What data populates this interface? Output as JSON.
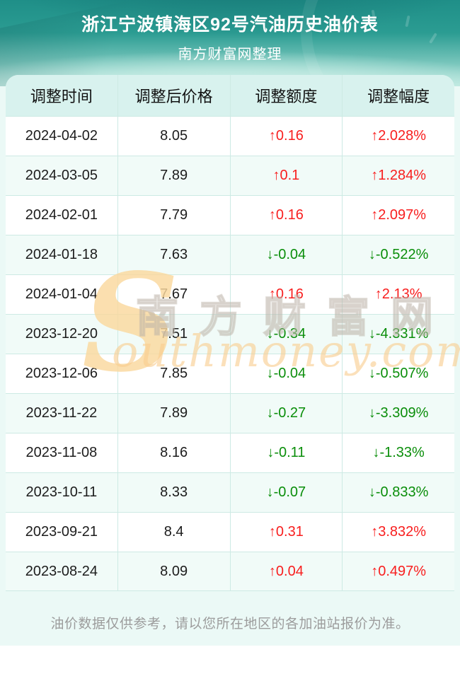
{
  "header": {
    "title": "浙江宁波镇海区92号汽油历史油价表",
    "subtitle": "南方财富网整理"
  },
  "table": {
    "columns": [
      "调整时间",
      "调整后价格",
      "调整额度",
      "调整幅度"
    ],
    "rows": [
      {
        "date": "2024-04-02",
        "price": "8.05",
        "change": "↑0.16",
        "change_pct": "↑2.028%",
        "direction": "up"
      },
      {
        "date": "2024-03-05",
        "price": "7.89",
        "change": "↑0.1",
        "change_pct": "↑1.284%",
        "direction": "up"
      },
      {
        "date": "2024-02-01",
        "price": "7.79",
        "change": "↑0.16",
        "change_pct": "↑2.097%",
        "direction": "up"
      },
      {
        "date": "2024-01-18",
        "price": "7.63",
        "change": "↓-0.04",
        "change_pct": "↓-0.522%",
        "direction": "down"
      },
      {
        "date": "2024-01-04",
        "price": "7.67",
        "change": "↑0.16",
        "change_pct": "↑2.13%",
        "direction": "up"
      },
      {
        "date": "2023-12-20",
        "price": "7.51",
        "change": "↓-0.34",
        "change_pct": "↓-4.331%",
        "direction": "down"
      },
      {
        "date": "2023-12-06",
        "price": "7.85",
        "change": "↓-0.04",
        "change_pct": "↓-0.507%",
        "direction": "down"
      },
      {
        "date": "2023-11-22",
        "price": "7.89",
        "change": "↓-0.27",
        "change_pct": "↓-3.309%",
        "direction": "down"
      },
      {
        "date": "2023-11-08",
        "price": "8.16",
        "change": "↓-0.11",
        "change_pct": "↓-1.33%",
        "direction": "down"
      },
      {
        "date": "2023-10-11",
        "price": "8.33",
        "change": "↓-0.07",
        "change_pct": "↓-0.833%",
        "direction": "down"
      },
      {
        "date": "2023-09-21",
        "price": "8.4",
        "change": "↑0.31",
        "change_pct": "↑3.832%",
        "direction": "up"
      },
      {
        "date": "2023-08-24",
        "price": "8.09",
        "change": "↑0.04",
        "change_pct": "↑0.497%",
        "direction": "up"
      }
    ]
  },
  "watermark": {
    "initial": "S",
    "cn": "南方财富网",
    "en": "outhmoney.com"
  },
  "footer": {
    "disclaimer": "油价数据仅供参考，请以您所在地区的各加油站报价为准。"
  },
  "colors": {
    "up_red": "#f81e1e",
    "down_green": "#0a8e0a",
    "banner_teal_top": "#1f8f88",
    "banner_teal_bottom": "#bde8e0",
    "table_header_bg": "#d8f2ee",
    "row_alt_bg": "#f1fbf8",
    "border": "#cdeae4",
    "page_bg": "#ebf9f6",
    "disclaimer_text": "#9c9c9c",
    "watermark_orange": "#f9cd90"
  },
  "chart_data": {
    "type": "table",
    "title": "浙江宁波镇海区92号汽油历史油价表",
    "subtitle": "南方财富网整理",
    "columns": [
      "调整时间",
      "调整后价格",
      "调整额度",
      "调整幅度"
    ],
    "rows": [
      [
        "2024-04-02",
        "8.05",
        "↑0.16",
        "↑2.028%"
      ],
      [
        "2024-03-05",
        "7.89",
        "↑0.1",
        "↑1.284%"
      ],
      [
        "2024-02-01",
        "7.79",
        "↑0.16",
        "↑2.097%"
      ],
      [
        "2024-01-18",
        "7.63",
        "↓-0.04",
        "↓-0.522%"
      ],
      [
        "2024-01-04",
        "7.67",
        "↑0.16",
        "↑2.13%"
      ],
      [
        "2023-12-20",
        "7.51",
        "↓-0.34",
        "↓-4.331%"
      ],
      [
        "2023-12-06",
        "7.85",
        "↓-0.04",
        "↓-0.507%"
      ],
      [
        "2023-11-22",
        "7.89",
        "↓-0.27",
        "↓-3.309%"
      ],
      [
        "2023-11-08",
        "8.16",
        "↓-0.11",
        "↓-1.33%"
      ],
      [
        "2023-10-11",
        "8.33",
        "↓-0.07",
        "↓-0.833%"
      ],
      [
        "2023-09-21",
        "8.4",
        "↑0.31",
        "↑3.832%"
      ],
      [
        "2023-08-24",
        "8.09",
        "↑0.04",
        "↑0.497%"
      ]
    ]
  }
}
